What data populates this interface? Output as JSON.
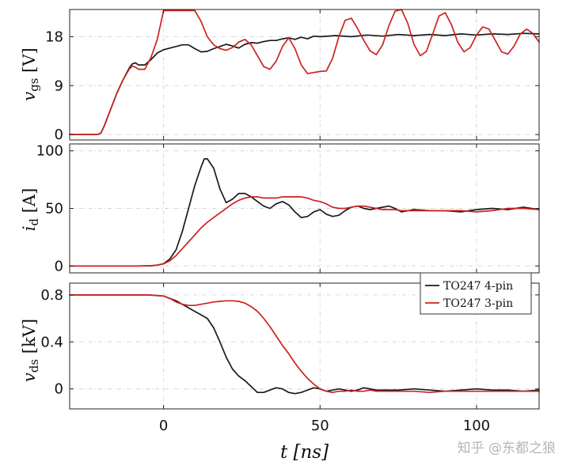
{
  "chart_data": [
    {
      "type": "line",
      "panel": "top",
      "ylabel_main": "v",
      "ylabel_sub": "gs",
      "ylabel_unit": " [V]",
      "xlim": [
        -30,
        120
      ],
      "ylim": [
        -1,
        23
      ],
      "yticks": [
        0,
        9,
        18
      ],
      "grid": true,
      "series": [
        {
          "name": "TO247 4-pin",
          "color": "#1a1a1a",
          "x": [
            -30,
            -21,
            -20,
            -19,
            -17,
            -15,
            -13,
            -11,
            -10,
            -9,
            -8,
            -6,
            -4,
            -2,
            0,
            2,
            4,
            6,
            8,
            10,
            12,
            14,
            16,
            18,
            20,
            22,
            24,
            26,
            28,
            30,
            32,
            34,
            36,
            38,
            40,
            42,
            44,
            46,
            48,
            50,
            55,
            60,
            65,
            70,
            75,
            80,
            85,
            90,
            95,
            100,
            105,
            110,
            115,
            120
          ],
          "y": [
            0,
            0,
            0.3,
            1.5,
            4.5,
            7.5,
            10,
            12.2,
            13,
            13.2,
            12.8,
            12.8,
            13.8,
            15,
            15.6,
            15.9,
            16.2,
            16.5,
            16.5,
            15.8,
            15.2,
            15.3,
            15.8,
            16.2,
            16.6,
            16.3,
            15.9,
            16.6,
            16.9,
            16.8,
            17.1,
            17.3,
            17.3,
            17.6,
            17.8,
            17.5,
            17.9,
            17.6,
            18.1,
            18.0,
            18.2,
            18.0,
            18.3,
            18.1,
            18.4,
            18.2,
            18.4,
            18.2,
            18.5,
            18.3,
            18.5,
            18.4,
            18.6,
            18.5
          ]
        },
        {
          "name": "TO247 3-pin",
          "color": "#cc2222",
          "x": [
            -30,
            -21,
            -20,
            -19,
            -17,
            -15,
            -13,
            -11,
            -10,
            -9,
            -8,
            -6,
            -4,
            -2,
            0,
            2,
            4,
            6,
            8,
            10,
            12,
            14,
            16,
            18,
            20,
            22,
            24,
            26,
            28,
            30,
            32,
            34,
            36,
            38,
            40,
            42,
            44,
            46,
            48,
            50,
            52,
            54,
            56,
            58,
            60,
            62,
            64,
            66,
            68,
            70,
            72,
            74,
            76,
            78,
            80,
            82,
            84,
            86,
            88,
            90,
            92,
            94,
            96,
            98,
            100,
            102,
            104,
            106,
            108,
            110,
            112,
            114,
            116,
            118,
            120
          ],
          "y": [
            0,
            0,
            0.3,
            1.5,
            4.5,
            7.5,
            10,
            12,
            12.6,
            12.4,
            12,
            12,
            14.2,
            17.5,
            22.8,
            22.8,
            22.8,
            22.8,
            22.8,
            22.8,
            20.8,
            18,
            16.5,
            15.8,
            15.5,
            16,
            17,
            17.5,
            16.5,
            14.5,
            12.5,
            12,
            13.5,
            16.2,
            17.8,
            15.8,
            12.8,
            11.2,
            11.4,
            11.6,
            11.7,
            14,
            18,
            21,
            21.4,
            19.5,
            17.3,
            15.4,
            14.7,
            16.5,
            20,
            22.7,
            23,
            20.5,
            16.6,
            14.5,
            15.3,
            18.5,
            21.8,
            22.4,
            20.2,
            17,
            15.2,
            16,
            18.3,
            19.8,
            19.4,
            17.3,
            15.2,
            14.8,
            16.3,
            18.5,
            19.4,
            18.6,
            17
          ]
        }
      ]
    },
    {
      "type": "line",
      "panel": "middle",
      "ylabel_main": "i",
      "ylabel_sub": "d",
      "ylabel_unit": " [A]",
      "xlim": [
        -30,
        120
      ],
      "ylim": [
        -6,
        106
      ],
      "yticks": [
        0,
        50,
        100
      ],
      "grid": true,
      "series": [
        {
          "name": "TO247 4-pin",
          "color": "#1a1a1a",
          "x": [
            -30,
            -8,
            -4,
            -2,
            0,
            2,
            4,
            6,
            8,
            10,
            12,
            13,
            14,
            16,
            18,
            20,
            22,
            24,
            26,
            28,
            30,
            32,
            34,
            36,
            38,
            40,
            42,
            44,
            46,
            48,
            50,
            52,
            54,
            56,
            58,
            60,
            62,
            64,
            66,
            68,
            70,
            72,
            74,
            76,
            78,
            80,
            85,
            90,
            95,
            100,
            105,
            110,
            115,
            120
          ],
          "y": [
            0,
            0,
            0.2,
            0.7,
            2,
            6,
            14,
            30,
            50,
            70,
            86,
            93,
            93,
            85,
            67,
            55,
            58,
            63,
            63,
            60,
            56,
            52,
            50,
            54,
            56,
            53,
            47,
            42,
            43,
            47,
            49,
            45,
            43,
            44,
            48,
            51,
            52,
            50,
            49,
            50,
            51,
            52,
            50,
            47,
            48,
            49,
            48,
            48,
            47,
            49,
            50,
            49,
            51,
            49
          ]
        },
        {
          "name": "TO247 3-pin",
          "color": "#cc2222",
          "x": [
            -30,
            -8,
            -4,
            -2,
            0,
            2,
            4,
            6,
            8,
            10,
            12,
            14,
            16,
            18,
            20,
            22,
            24,
            26,
            28,
            30,
            32,
            34,
            36,
            38,
            40,
            42,
            44,
            46,
            48,
            50,
            52,
            54,
            56,
            58,
            60,
            62,
            64,
            66,
            68,
            70,
            72,
            74,
            76,
            78,
            80,
            85,
            90,
            95,
            100,
            105,
            110,
            115,
            120
          ],
          "y": [
            0,
            0,
            0.2,
            0.7,
            1.8,
            4.5,
            9,
            15,
            21,
            27,
            33,
            38,
            42,
            46,
            50,
            54,
            57,
            59,
            60,
            60,
            59,
            59,
            59,
            60,
            60,
            60,
            60,
            59,
            57,
            56,
            54,
            51,
            50,
            50,
            51,
            52,
            52,
            51,
            50,
            49,
            49,
            49,
            48,
            48,
            48,
            48,
            48,
            48,
            47,
            48,
            50,
            50,
            49
          ]
        }
      ]
    },
    {
      "type": "line",
      "panel": "bottom",
      "ylabel_main": "v",
      "ylabel_sub": "ds",
      "ylabel_unit": " [kV]",
      "xlim": [
        -30,
        120
      ],
      "ylim": [
        -0.17,
        0.9
      ],
      "yticks": [
        0,
        0.4,
        0.8
      ],
      "xticks": [
        0,
        50,
        100
      ],
      "xlabel_main": "t",
      "xlabel_unit": "[ns]",
      "grid": true,
      "legend": "top-right",
      "series": [
        {
          "name": "TO247 4-pin",
          "color": "#1a1a1a",
          "x": [
            -30,
            -5,
            0,
            2,
            4,
            6,
            8,
            10,
            12,
            14,
            16,
            18,
            20,
            22,
            24,
            26,
            28,
            30,
            32,
            34,
            36,
            38,
            40,
            42,
            44,
            46,
            48,
            50,
            52,
            54,
            56,
            58,
            60,
            62,
            64,
            66,
            68,
            70,
            75,
            80,
            85,
            90,
            95,
            100,
            105,
            110,
            115,
            120
          ],
          "y": [
            0.8,
            0.8,
            0.79,
            0.77,
            0.75,
            0.72,
            0.69,
            0.66,
            0.63,
            0.6,
            0.52,
            0.4,
            0.27,
            0.17,
            0.11,
            0.07,
            0.02,
            -0.03,
            -0.03,
            -0.01,
            0.01,
            0,
            -0.03,
            -0.04,
            -0.03,
            -0.01,
            0.01,
            0,
            -0.02,
            -0.01,
            0,
            -0.01,
            -0.02,
            -0.01,
            0.01,
            0,
            -0.01,
            -0.01,
            -0.01,
            0,
            -0.01,
            -0.02,
            -0.01,
            0,
            -0.01,
            -0.01,
            -0.02,
            -0.01
          ]
        },
        {
          "name": "TO247 3-pin",
          "color": "#cc2222",
          "x": [
            -30,
            -5,
            0,
            2,
            4,
            6,
            8,
            10,
            12,
            14,
            16,
            18,
            20,
            22,
            24,
            26,
            28,
            30,
            32,
            34,
            36,
            38,
            40,
            42,
            44,
            46,
            48,
            50,
            52,
            54,
            56,
            58,
            60,
            62,
            64,
            66,
            68,
            70,
            75,
            80,
            85,
            90,
            95,
            100,
            105,
            110,
            115,
            120
          ],
          "y": [
            0.8,
            0.8,
            0.79,
            0.77,
            0.74,
            0.72,
            0.71,
            0.71,
            0.72,
            0.73,
            0.74,
            0.745,
            0.75,
            0.75,
            0.745,
            0.73,
            0.7,
            0.66,
            0.6,
            0.53,
            0.45,
            0.37,
            0.3,
            0.22,
            0.15,
            0.09,
            0.04,
            0,
            -0.02,
            -0.03,
            -0.02,
            -0.02,
            -0.01,
            -0.02,
            -0.02,
            -0.01,
            -0.02,
            -0.02,
            -0.02,
            -0.02,
            -0.03,
            -0.02,
            -0.02,
            -0.02,
            -0.02,
            -0.02,
            -0.02,
            -0.02
          ]
        }
      ]
    }
  ],
  "watermark": "知乎 @东都之狼"
}
